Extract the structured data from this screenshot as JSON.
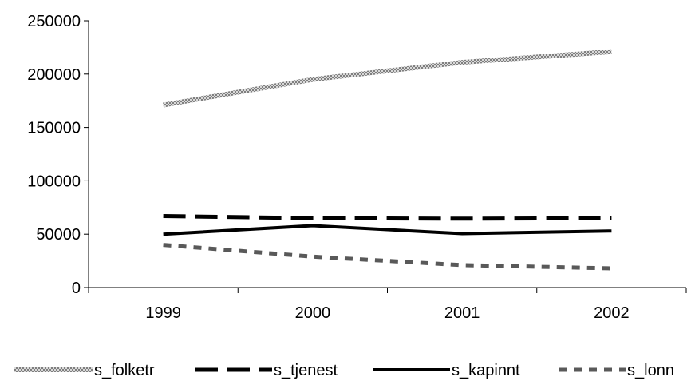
{
  "chart_data": {
    "type": "line",
    "title": "",
    "xlabel": "",
    "ylabel": "",
    "categories": [
      "1999",
      "2000",
      "2001",
      "2002"
    ],
    "ylim": [
      0,
      250000
    ],
    "yticks": [
      0,
      50000,
      100000,
      150000,
      200000,
      250000
    ],
    "ytick_labels": [
      "0",
      "50000",
      "100000",
      "150000",
      "200000",
      "250000"
    ],
    "grid": false,
    "legend_position": "bottom",
    "series": [
      {
        "name": "s_folketr",
        "values": [
          171000,
          195000,
          211000,
          221000
        ],
        "color": "#a6a6a6",
        "style": "textured"
      },
      {
        "name": "s_tjenest",
        "values": [
          67000,
          65000,
          64500,
          65000
        ],
        "color": "#000000",
        "style": "long-dash"
      },
      {
        "name": "s_kapinnt",
        "values": [
          50000,
          58000,
          50500,
          53000
        ],
        "color": "#000000",
        "style": "solid"
      },
      {
        "name": "s_lonn",
        "values": [
          40000,
          29000,
          21000,
          18000
        ],
        "color": "#595959",
        "style": "dot"
      }
    ]
  }
}
